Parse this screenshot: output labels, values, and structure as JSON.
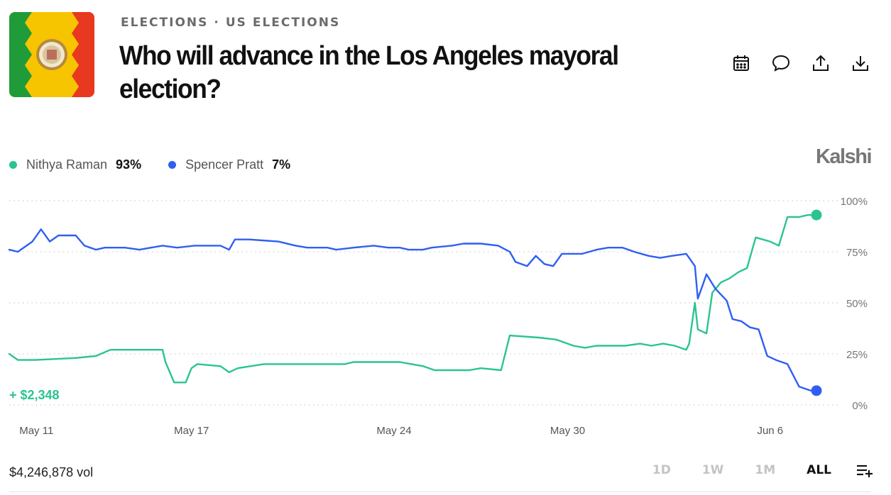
{
  "breadcrumb": {
    "category": "ELECTIONS",
    "separator": "·",
    "subcategory": "US ELECTIONS"
  },
  "market": {
    "title": "Who will advance in the Los Angeles mayoral election?"
  },
  "brand": "Kalshi",
  "colors": {
    "raman": "#2bc48f",
    "pratt": "#2f5ff2",
    "grid": "#c8c8c8",
    "axis_text": "#777777"
  },
  "icons": [
    "calendar-icon",
    "comment-icon",
    "share-icon",
    "download-icon",
    "add-list-icon"
  ],
  "legend": [
    {
      "name": "Nithya Raman",
      "pct": "93%"
    },
    {
      "name": "Spencer Pratt",
      "pct": "7%"
    }
  ],
  "chart_data": {
    "type": "line",
    "x_ticks": [
      "May 11",
      "May 17",
      "May 24",
      "May 30",
      "Jun 6"
    ],
    "y_ticks": [
      "100%",
      "75%",
      "50%",
      "25%",
      "0%"
    ],
    "ylim": [
      0,
      100
    ],
    "grid": true,
    "annotation": "+ $2,348",
    "series": [
      {
        "name": "Nithya Raman",
        "color": "#2bc48f",
        "points": [
          [
            10.7,
            25
          ],
          [
            11.0,
            22
          ],
          [
            11.6,
            22
          ],
          [
            13.0,
            23
          ],
          [
            13.7,
            24
          ],
          [
            14.2,
            27
          ],
          [
            16.0,
            27
          ],
          [
            16.1,
            21
          ],
          [
            16.4,
            11
          ],
          [
            16.8,
            11
          ],
          [
            17.0,
            18
          ],
          [
            17.2,
            20
          ],
          [
            18.0,
            19
          ],
          [
            18.3,
            16
          ],
          [
            18.6,
            18
          ],
          [
            19.5,
            20
          ],
          [
            21.0,
            20
          ],
          [
            22.3,
            20
          ],
          [
            22.6,
            21
          ],
          [
            23.0,
            21
          ],
          [
            23.5,
            21
          ],
          [
            24.2,
            21
          ],
          [
            24.6,
            20
          ],
          [
            25.0,
            19
          ],
          [
            25.4,
            17
          ],
          [
            26.0,
            17
          ],
          [
            26.6,
            17
          ],
          [
            27.0,
            18
          ],
          [
            27.7,
            17
          ],
          [
            28.0,
            34
          ],
          [
            29.0,
            33
          ],
          [
            29.6,
            32
          ],
          [
            30.2,
            29
          ],
          [
            30.6,
            28
          ],
          [
            31.0,
            29
          ],
          [
            31.7,
            29
          ],
          [
            32.0,
            29
          ],
          [
            32.5,
            30
          ],
          [
            32.9,
            29
          ],
          [
            33.3,
            30
          ],
          [
            33.7,
            29
          ],
          [
            34.1,
            27
          ],
          [
            34.2,
            30
          ],
          [
            34.4,
            50
          ],
          [
            34.5,
            37
          ],
          [
            34.8,
            35
          ],
          [
            35.0,
            55
          ],
          [
            35.3,
            60
          ],
          [
            35.6,
            62
          ],
          [
            35.9,
            65
          ],
          [
            36.2,
            67
          ],
          [
            36.5,
            82
          ],
          [
            37.0,
            80
          ],
          [
            37.3,
            78
          ],
          [
            37.6,
            92
          ],
          [
            38.0,
            92
          ],
          [
            38.3,
            93
          ],
          [
            38.6,
            93
          ]
        ]
      },
      {
        "name": "Spencer Pratt",
        "color": "#2f5ff2",
        "points": [
          [
            10.7,
            76
          ],
          [
            11.0,
            75
          ],
          [
            11.5,
            80
          ],
          [
            11.8,
            86
          ],
          [
            12.1,
            80
          ],
          [
            12.4,
            83
          ],
          [
            13.0,
            83
          ],
          [
            13.3,
            78
          ],
          [
            13.7,
            76
          ],
          [
            14.0,
            77
          ],
          [
            14.7,
            77
          ],
          [
            15.2,
            76
          ],
          [
            15.6,
            77
          ],
          [
            16.0,
            78
          ],
          [
            16.5,
            77
          ],
          [
            17.1,
            78
          ],
          [
            18.0,
            78
          ],
          [
            18.3,
            76
          ],
          [
            18.5,
            81
          ],
          [
            19.0,
            81
          ],
          [
            20.0,
            80
          ],
          [
            20.6,
            78
          ],
          [
            21.0,
            77
          ],
          [
            21.7,
            77
          ],
          [
            22.0,
            76
          ],
          [
            22.6,
            77
          ],
          [
            23.3,
            78
          ],
          [
            23.8,
            77
          ],
          [
            24.2,
            77
          ],
          [
            24.5,
            76
          ],
          [
            25.0,
            76
          ],
          [
            25.3,
            77
          ],
          [
            26.0,
            78
          ],
          [
            26.4,
            79
          ],
          [
            27.0,
            79
          ],
          [
            27.6,
            78
          ],
          [
            28.0,
            75
          ],
          [
            28.2,
            70
          ],
          [
            28.6,
            68
          ],
          [
            28.9,
            73
          ],
          [
            29.2,
            69
          ],
          [
            29.5,
            68
          ],
          [
            29.8,
            74
          ],
          [
            30.5,
            74
          ],
          [
            31.0,
            76
          ],
          [
            31.4,
            77
          ],
          [
            31.9,
            77
          ],
          [
            32.3,
            75
          ],
          [
            32.8,
            73
          ],
          [
            33.2,
            72
          ],
          [
            33.6,
            73
          ],
          [
            34.1,
            74
          ],
          [
            34.4,
            68
          ],
          [
            34.5,
            52
          ],
          [
            34.7,
            60
          ],
          [
            34.8,
            64
          ],
          [
            35.1,
            57
          ],
          [
            35.5,
            51
          ],
          [
            35.7,
            42
          ],
          [
            36.0,
            41
          ],
          [
            36.3,
            38
          ],
          [
            36.6,
            37
          ],
          [
            36.9,
            24
          ],
          [
            37.2,
            22
          ],
          [
            37.6,
            20
          ],
          [
            38.0,
            9
          ],
          [
            38.2,
            8
          ],
          [
            38.4,
            7
          ],
          [
            38.6,
            7
          ]
        ]
      }
    ]
  },
  "footer": {
    "volume": "$4,246,878 vol",
    "ranges": [
      "1D",
      "1W",
      "1M",
      "ALL"
    ],
    "active_range": "ALL"
  }
}
